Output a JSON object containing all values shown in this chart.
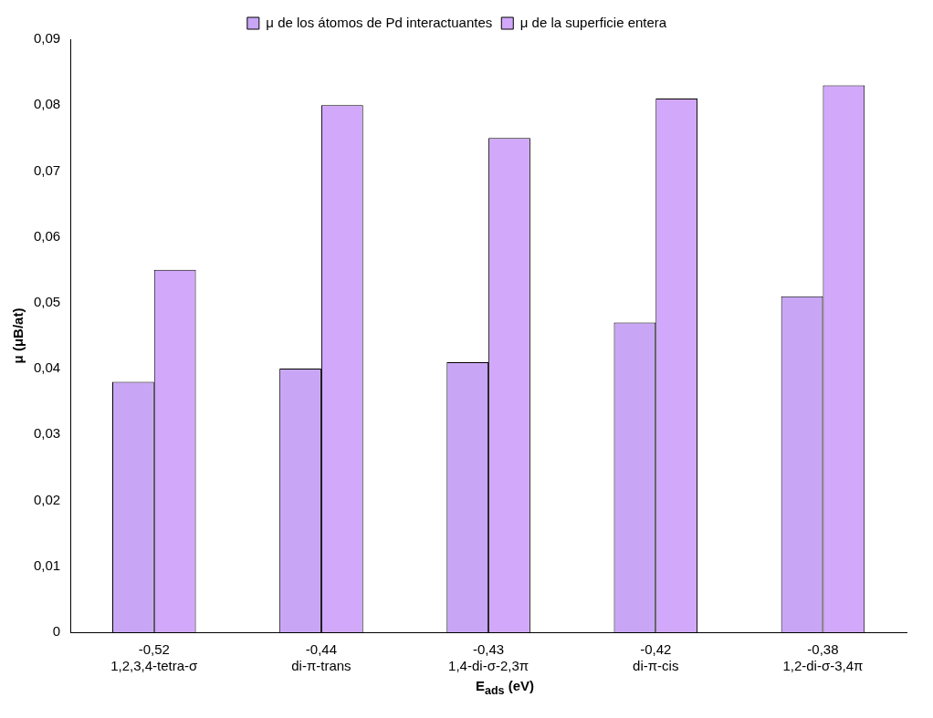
{
  "chart_data": {
    "type": "bar",
    "xlabel": "E$_{ads}$ (eV)",
    "ylabel": "μ (μB/at)",
    "categories": [
      "-0,52\n1,2,3,4-tetra-σ",
      "-0,44\ndi-π-trans",
      "-0,43\n1,4-di-σ-2,3π",
      "-0,42\ndi-π-cis",
      "-0,38\n1,2-di-σ-3,4π"
    ],
    "series": [
      {
        "name": "μ de los átomos de Pd interactuantes",
        "color": "#c9a6f5",
        "values": [
          0.038,
          0.04,
          0.041,
          0.047,
          0.051
        ]
      },
      {
        "name": "μ de la superficie entera",
        "color": "#d2a8fb",
        "values": [
          0.055,
          0.08,
          0.075,
          0.081,
          0.083
        ]
      }
    ],
    "ylim": [
      0,
      0.09
    ],
    "yticks": [
      0,
      {
        "value": 0.01,
        "label": "0,01"
      },
      {
        "value": 0.02,
        "label": "0,02"
      },
      {
        "value": 0.03,
        "label": "0,03"
      },
      {
        "value": 0.04,
        "label": "0,04"
      },
      {
        "value": 0.05,
        "label": "0,05"
      },
      {
        "value": 0.06,
        "label": "0,06"
      },
      {
        "value": 0.07,
        "label": "0,07"
      },
      {
        "value": 0.08,
        "label": "0,08"
      },
      {
        "value": 0.09,
        "label": "0,09"
      }
    ],
    "grid": false,
    "legend": "top"
  }
}
